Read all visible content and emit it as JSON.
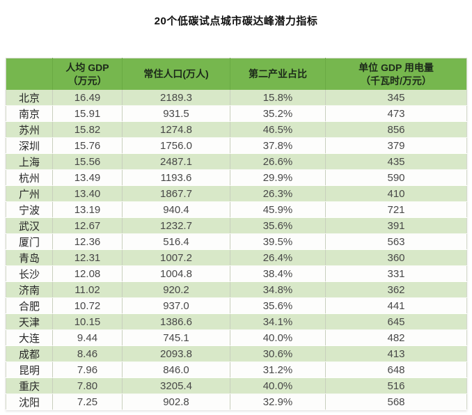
{
  "title": "20个低碳试点城市碳达峰潜力指标",
  "colors": {
    "header_green": "#76b74e",
    "row_green": "#d8e8c8",
    "row_white": "#fdfdfc",
    "title_text": "#111111",
    "cell_text": "#474747"
  },
  "chart_data": {
    "type": "table",
    "title": "20个低碳试点城市碳达峰潜力指标",
    "columns": [
      {
        "id": "city",
        "label": ""
      },
      {
        "id": "gdp",
        "label_line1": "人均 GDP",
        "label_line2": "（万元）"
      },
      {
        "id": "population",
        "label": "常住人口(万人)"
      },
      {
        "id": "secondary",
        "label": "第二产业占比"
      },
      {
        "id": "electricity",
        "label_line1": "单位 GDP 用电量",
        "label_line2": "（千瓦时/万元）"
      }
    ],
    "rows": [
      {
        "city": "北京",
        "gdp": "16.49",
        "population": "2189.3",
        "secondary": "15.8%",
        "electricity": "345"
      },
      {
        "city": "南京",
        "gdp": "15.91",
        "population": "931.5",
        "secondary": "35.2%",
        "electricity": "473"
      },
      {
        "city": "苏州",
        "gdp": "15.82",
        "population": "1274.8",
        "secondary": "46.5%",
        "electricity": "856"
      },
      {
        "city": "深圳",
        "gdp": "15.76",
        "population": "1756.0",
        "secondary": "37.8%",
        "electricity": "379"
      },
      {
        "city": "上海",
        "gdp": "15.56",
        "population": "2487.1",
        "secondary": "26.6%",
        "electricity": "435"
      },
      {
        "city": "杭州",
        "gdp": "13.49",
        "population": "1193.6",
        "secondary": "29.9%",
        "electricity": "590"
      },
      {
        "city": "广州",
        "gdp": "13.40",
        "population": "1867.7",
        "secondary": "26.3%",
        "electricity": "410"
      },
      {
        "city": "宁波",
        "gdp": "13.19",
        "population": "940.4",
        "secondary": "45.9%",
        "electricity": "721"
      },
      {
        "city": "武汉",
        "gdp": "12.67",
        "population": "1232.7",
        "secondary": "35.6%",
        "electricity": "391"
      },
      {
        "city": "厦门",
        "gdp": "12.36",
        "population": "516.4",
        "secondary": "39.5%",
        "electricity": "563"
      },
      {
        "city": "青岛",
        "gdp": "12.31",
        "population": "1007.2",
        "secondary": "26.4%",
        "electricity": "360"
      },
      {
        "city": "长沙",
        "gdp": "12.08",
        "population": "1004.8",
        "secondary": "38.4%",
        "electricity": "331"
      },
      {
        "city": "济南",
        "gdp": "11.02",
        "population": "920.2",
        "secondary": "34.8%",
        "electricity": "362"
      },
      {
        "city": "合肥",
        "gdp": "10.72",
        "population": "937.0",
        "secondary": "35.6%",
        "electricity": "441"
      },
      {
        "city": "天津",
        "gdp": "10.15",
        "population": "1386.6",
        "secondary": "34.1%",
        "electricity": "645"
      },
      {
        "city": "大连",
        "gdp": "9.44",
        "population": "745.1",
        "secondary": "40.0%",
        "electricity": "482"
      },
      {
        "city": "成都",
        "gdp": "8.46",
        "population": "2093.8",
        "secondary": "30.6%",
        "electricity": "413"
      },
      {
        "city": "昆明",
        "gdp": "7.96",
        "population": "846.0",
        "secondary": "31.2%",
        "electricity": "648"
      },
      {
        "city": "重庆",
        "gdp": "7.80",
        "population": "3205.4",
        "secondary": "40.0%",
        "electricity": "516"
      },
      {
        "city": "沈阳",
        "gdp": "7.25",
        "population": "902.8",
        "secondary": "32.9%",
        "electricity": "568"
      }
    ]
  }
}
